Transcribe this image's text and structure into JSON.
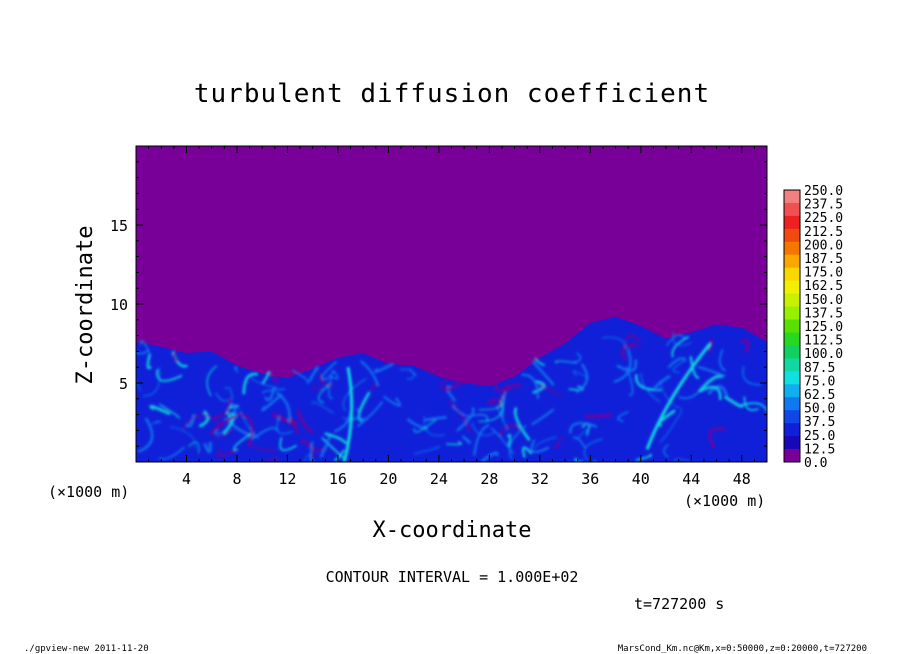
{
  "chart_data": {
    "type": "heatmap",
    "title": "turbulent diffusion coefficient",
    "xlabel": "X-coordinate",
    "ylabel": "Z-coordinate",
    "x_unit_left": "(×1000 m)",
    "x_unit_right": "(×1000 m)",
    "xlim": [
      0,
      50
    ],
    "ylim": [
      0,
      20
    ],
    "x_ticks": [
      4,
      8,
      12,
      16,
      20,
      24,
      28,
      32,
      36,
      40,
      44,
      48
    ],
    "y_ticks": [
      5,
      10,
      15
    ],
    "background_value": 0.0,
    "boundary_layer_top": {
      "x": [
        0,
        2,
        4,
        6,
        8,
        10,
        12,
        14,
        16,
        18,
        20,
        22,
        24,
        26,
        28,
        30,
        32,
        34,
        36,
        38,
        40,
        42,
        44,
        46,
        48,
        50
      ],
      "z": [
        7.6,
        7.3,
        6.9,
        7.0,
        6.1,
        5.6,
        5.3,
        5.9,
        6.6,
        6.9,
        6.2,
        6.1,
        5.4,
        5.0,
        4.8,
        5.4,
        6.6,
        7.5,
        8.8,
        9.2,
        8.6,
        7.8,
        8.2,
        8.7,
        8.5,
        7.6
      ]
    },
    "colorbar": {
      "levels": [
        "250.0",
        "237.5",
        "225.0",
        "212.5",
        "200.0",
        "187.5",
        "175.0",
        "162.5",
        "150.0",
        "137.5",
        "125.0",
        "112.5",
        "100.0",
        "87.5",
        "75.0",
        "62.5",
        "50.0",
        "37.5",
        "25.0",
        "12.5",
        "0.0"
      ],
      "colors": [
        "#f28080",
        "#f05050",
        "#ee2020",
        "#f04a10",
        "#f47800",
        "#f8a800",
        "#f8d800",
        "#f0f000",
        "#c8f000",
        "#96f000",
        "#5ae000",
        "#28d820",
        "#10d060",
        "#10d8a0",
        "#10e0e0",
        "#10b0f0",
        "#1078f0",
        "#1048e8",
        "#1020d8",
        "#1808b8",
        "#780098"
      ]
    },
    "contour_interval_label": "CONTOUR INTERVAL = 1.000E+02",
    "time_label": "t=727200 s"
  },
  "footer": {
    "left": "./gpview-new  2011-11-20",
    "right": "MarsCond_Km.nc@Km,x=0:50000,z=0:20000,t=727200"
  },
  "colors": {
    "background": "#780098",
    "low": "#1020d8",
    "mid": "#1078f0",
    "high": "#10e0e0"
  }
}
